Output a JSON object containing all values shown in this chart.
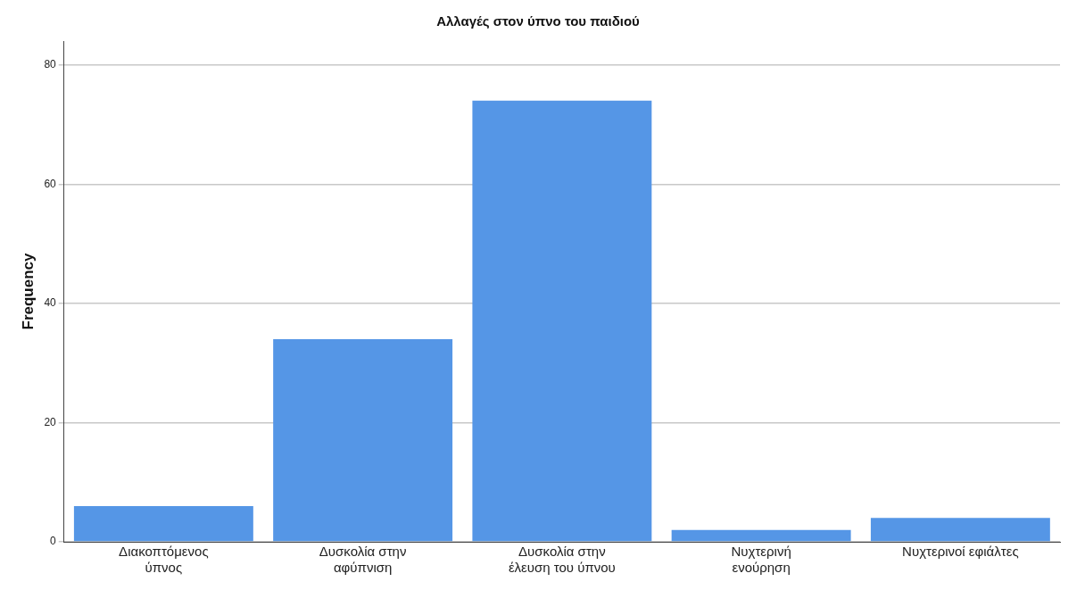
{
  "chart_data": {
    "type": "bar",
    "title": "Αλλαγές στον ύπνο του παιδιού",
    "ylabel": "Frequency",
    "categories": [
      "Διακοπτόμενος ύπνος",
      "Δυσκολία στην αφύπνιση",
      "Δυσκολία στην έλευση του ύπνου",
      "Νυχτερινή ενούρηση",
      "Νυχτερινοί εφιάλτες"
    ],
    "values": [
      6,
      34,
      74,
      2,
      4
    ],
    "color": "#5596e6",
    "ylim": [
      0,
      84
    ],
    "yticks": [
      0,
      20,
      40,
      60,
      80
    ],
    "grid": "y",
    "legend": false
  }
}
